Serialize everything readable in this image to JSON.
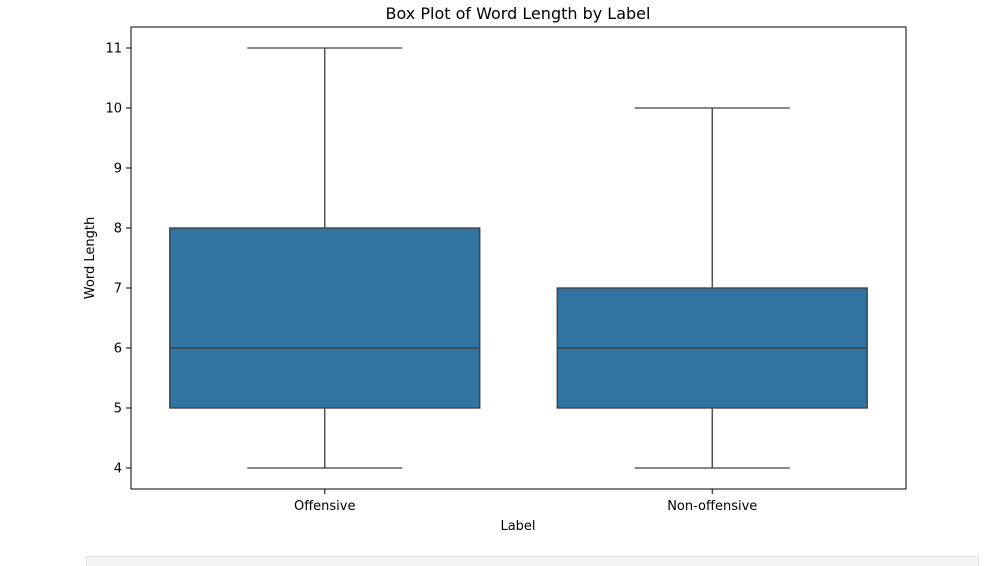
{
  "chart_data": {
    "type": "box",
    "title": "Box Plot of Word Length by Label",
    "xlabel": "Label",
    "ylabel": "Word Length",
    "ylim": [
      3.65,
      11.35
    ],
    "yticks": [
      4,
      5,
      6,
      7,
      8,
      9,
      10,
      11
    ],
    "grid": false,
    "box_color": "#3274a1",
    "line_color": "#3d3d3d",
    "boxes": [
      {
        "label": "Offensive",
        "whisker_low": 4,
        "q1": 5,
        "median": 6,
        "q3": 8,
        "whisker_high": 11
      },
      {
        "label": "Non-offensive",
        "whisker_low": 4,
        "q1": 5,
        "median": 6,
        "q3": 7,
        "whisker_high": 10
      }
    ]
  }
}
